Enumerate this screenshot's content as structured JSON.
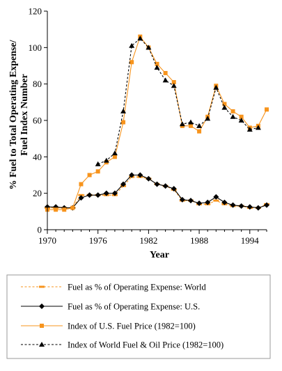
{
  "chart_data": {
    "type": "line",
    "title": "",
    "xlabel": "Year",
    "ylabel_lines": [
      "% Fuel to Total Operating Expense/",
      "Fuel Index Number"
    ],
    "xlim": [
      1970,
      1996
    ],
    "ylim": [
      0,
      120
    ],
    "xticks": [
      1970,
      1976,
      1982,
      1988,
      1994
    ],
    "yticks": [
      0,
      20,
      40,
      60,
      80,
      100,
      120
    ],
    "grid": false,
    "legend_position": "bottom",
    "series": [
      {
        "name": "Fuel as % of Operating Expense: World",
        "color": "#f7941d",
        "dash": "dashed",
        "marker": "bar",
        "x": [
          1970,
          1971,
          1972,
          1973,
          1974,
          1975,
          1976,
          1977,
          1978,
          1979,
          1980,
          1981,
          1982,
          1983,
          1984,
          1985,
          1986,
          1987,
          1988,
          1989,
          1990,
          1991,
          1992,
          1993,
          1994,
          1995,
          1996
        ],
        "y": [
          12,
          12,
          12,
          12,
          19,
          19,
          19,
          19,
          19,
          24,
          29,
          29,
          28,
          25,
          24,
          22,
          16,
          16,
          14,
          14,
          16,
          14,
          13,
          13,
          12,
          12,
          14
        ]
      },
      {
        "name": "Fuel as % of Operating Expense: U.S.",
        "color": "#000000",
        "dash": "solid",
        "marker": "diamond",
        "x": [
          1970,
          1971,
          1972,
          1973,
          1974,
          1975,
          1976,
          1977,
          1978,
          1979,
          1980,
          1981,
          1982,
          1983,
          1984,
          1985,
          1986,
          1987,
          1988,
          1989,
          1990,
          1991,
          1992,
          1993,
          1994,
          1995,
          1996
        ],
        "y": [
          12.5,
          12.5,
          12,
          12,
          17.5,
          19,
          19,
          20,
          20,
          25,
          30,
          30,
          28,
          25,
          24,
          22.5,
          16.5,
          16,
          14.5,
          15,
          18,
          15,
          13.5,
          13,
          12.5,
          12,
          13.5
        ]
      },
      {
        "name": "Index of U.S. Fuel Price (1982=100)",
        "color": "#f7941d",
        "dash": "solid",
        "marker": "square",
        "x": [
          1970,
          1971,
          1972,
          1973,
          1974,
          1975,
          1976,
          1977,
          1978,
          1979,
          1980,
          1981,
          1982,
          1983,
          1984,
          1985,
          1986,
          1987,
          1988,
          1989,
          1990,
          1991,
          1992,
          1993,
          1994,
          1995,
          1996
        ],
        "y": [
          11,
          11,
          11,
          12,
          25,
          30,
          32,
          37,
          40,
          59,
          92,
          106,
          100,
          91,
          86,
          81,
          57,
          57,
          54,
          62,
          79,
          69,
          65,
          62,
          56,
          57,
          66
        ]
      },
      {
        "name": "Index of World Fuel & Oil Price (1982=100)",
        "color": "#000000",
        "dash": "dashed",
        "marker": "triangle",
        "x": [
          1976,
          1977,
          1978,
          1979,
          1980,
          1981,
          1982,
          1983,
          1984,
          1985,
          1986,
          1987,
          1988,
          1989,
          1990,
          1991,
          1992,
          1993,
          1994,
          1995
        ],
        "y": [
          36,
          38,
          42,
          65,
          101,
          105,
          100,
          89,
          82,
          79,
          58,
          59,
          57,
          61,
          78,
          67,
          62,
          60,
          55,
          56
        ]
      }
    ]
  }
}
